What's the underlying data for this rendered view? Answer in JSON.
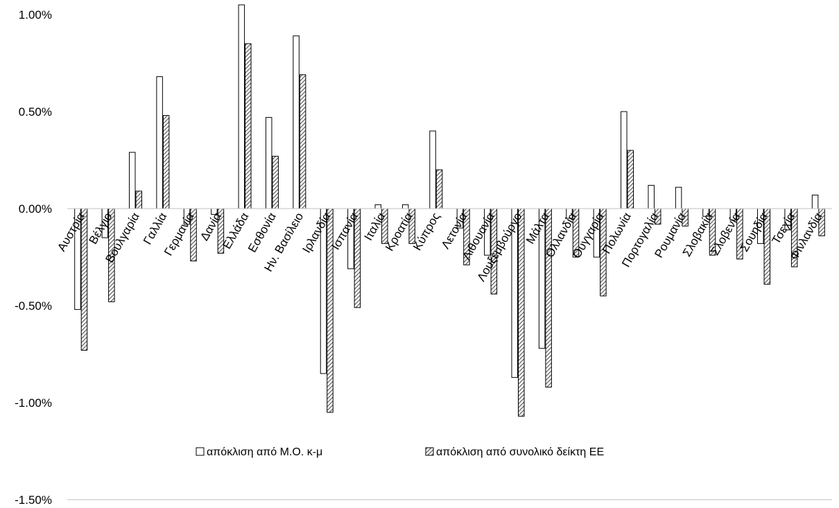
{
  "chart_data": {
    "type": "bar",
    "categories": [
      "Αυστρία",
      "Βέλγιο",
      "Βουλγαρία",
      "Γαλλία",
      "Γερμανία",
      "Δανία",
      "Ελλάδα",
      "Εσθονία",
      "Ην. Βασίλειο",
      "Ιρλανδία",
      "Ισπανία",
      "Ιταλία",
      "Κροατία",
      "Κύπρος",
      "Λετονία",
      "Λιθουανία",
      "Λουξεμβούργο",
      "Μάλτα",
      "Ολλανδία",
      "Ουγγαρία",
      "Πολωνία",
      "Πορτογαλία",
      "Ρουμανία",
      "Σλοβακία",
      "Σλοβενία",
      "Σουηδία",
      "Τσεχία",
      "Φινλανδία"
    ],
    "series": [
      {
        "name": "απόκλιση από Μ.Ο. κ-μ",
        "pattern": "none",
        "fill": "#ffffff",
        "values": [
          -0.0052,
          -0.0015,
          0.0029,
          0.0068,
          -0.0008,
          -0.0003,
          0.0105,
          0.0047,
          0.0089,
          -0.0085,
          -0.0031,
          0.0002,
          0.0002,
          0.004,
          -0.001,
          -0.0024,
          -0.0087,
          -0.0072,
          -0.0005,
          -0.0025,
          0.005,
          0.0012,
          0.0011,
          -0.0004,
          -0.0006,
          -0.0018,
          -0.0011,
          0.0007
        ]
      },
      {
        "name": "απόκλιση από συνολικό δείκτη ΕΕ",
        "pattern": "diagonal-hatch",
        "fill": "#595959",
        "values": [
          -0.0073,
          -0.0048,
          0.0009,
          0.0048,
          -0.0027,
          -0.0023,
          0.0085,
          0.0027,
          0.0069,
          -0.0105,
          -0.0051,
          -0.0018,
          -0.0018,
          0.002,
          -0.0029,
          -0.0044,
          -0.0107,
          -0.0092,
          -0.0025,
          -0.0045,
          0.003,
          -0.0008,
          -0.0009,
          -0.0024,
          -0.0026,
          -0.0039,
          -0.003,
          -0.0014
        ]
      }
    ],
    "y_ticks": [
      {
        "value": 0.01,
        "label": "1.00%"
      },
      {
        "value": 0.005,
        "label": "0.50%"
      },
      {
        "value": 0.0,
        "label": "0.00%"
      },
      {
        "value": -0.005,
        "label": "-0.50%"
      },
      {
        "value": -0.01,
        "label": "-1.00%"
      },
      {
        "value": -0.015,
        "label": "-1.50%"
      }
    ],
    "ylim": [
      -0.015,
      0.01
    ],
    "axis_color": "#bfbfbf",
    "bar_stroke": "#000000",
    "gridlines": false,
    "legend_position": "inside-bottom-center",
    "category_label_rotation": -60
  }
}
